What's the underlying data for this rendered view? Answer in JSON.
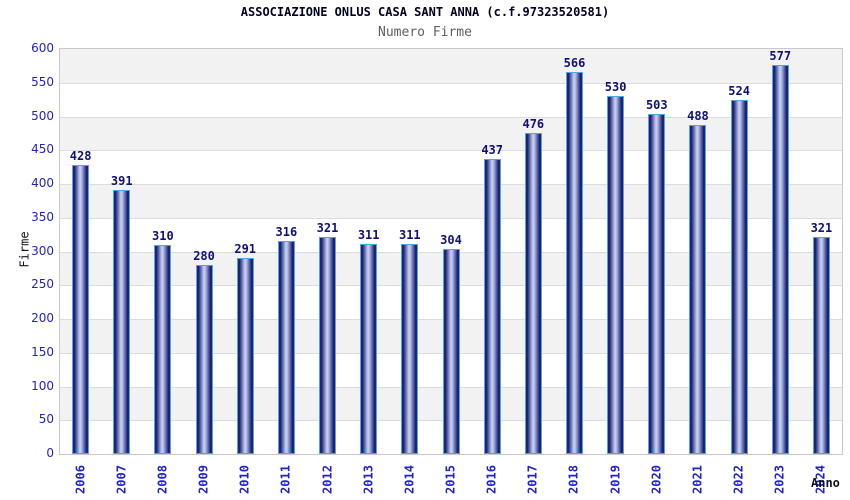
{
  "title": "ASSOCIAZIONE ONLUS CASA SANT ANNA (c.f.97323520581)",
  "subtitle": "Numero Firme",
  "chart_data": {
    "type": "bar",
    "title": "ASSOCIAZIONE ONLUS CASA SANT ANNA (c.f.97323520581)",
    "subtitle": "Numero Firme",
    "xlabel": "Anno",
    "ylabel": "Firme",
    "categories": [
      "2006",
      "2007",
      "2008",
      "2009",
      "2010",
      "2011",
      "2012",
      "2013",
      "2014",
      "2015",
      "2016",
      "2017",
      "2018",
      "2019",
      "2020",
      "2021",
      "2022",
      "2023",
      "2024"
    ],
    "values": [
      428,
      391,
      310,
      280,
      291,
      316,
      321,
      311,
      311,
      304,
      437,
      476,
      566,
      530,
      503,
      488,
      524,
      577,
      321
    ],
    "ylim": [
      0,
      600
    ],
    "ytick_step": 50,
    "grid": true,
    "legend": false,
    "bar_value_labels": true,
    "colors": {
      "title": "#000022",
      "subtitle": "#606060",
      "tick_label": "#2222cc",
      "value_label": "#10107a",
      "axis_title": "#111122",
      "bar_border": "#4da6e8",
      "bar_edge": "#232a7e",
      "bar_dark": "#161c6e",
      "bar_mid": "#aab4e0",
      "bar_light": "#cdd4ee",
      "band_gray": "#f2f2f2",
      "band_white": "#ffffff",
      "gridline": "#dcdcdc",
      "plot_border": "#c9c9c9"
    }
  }
}
